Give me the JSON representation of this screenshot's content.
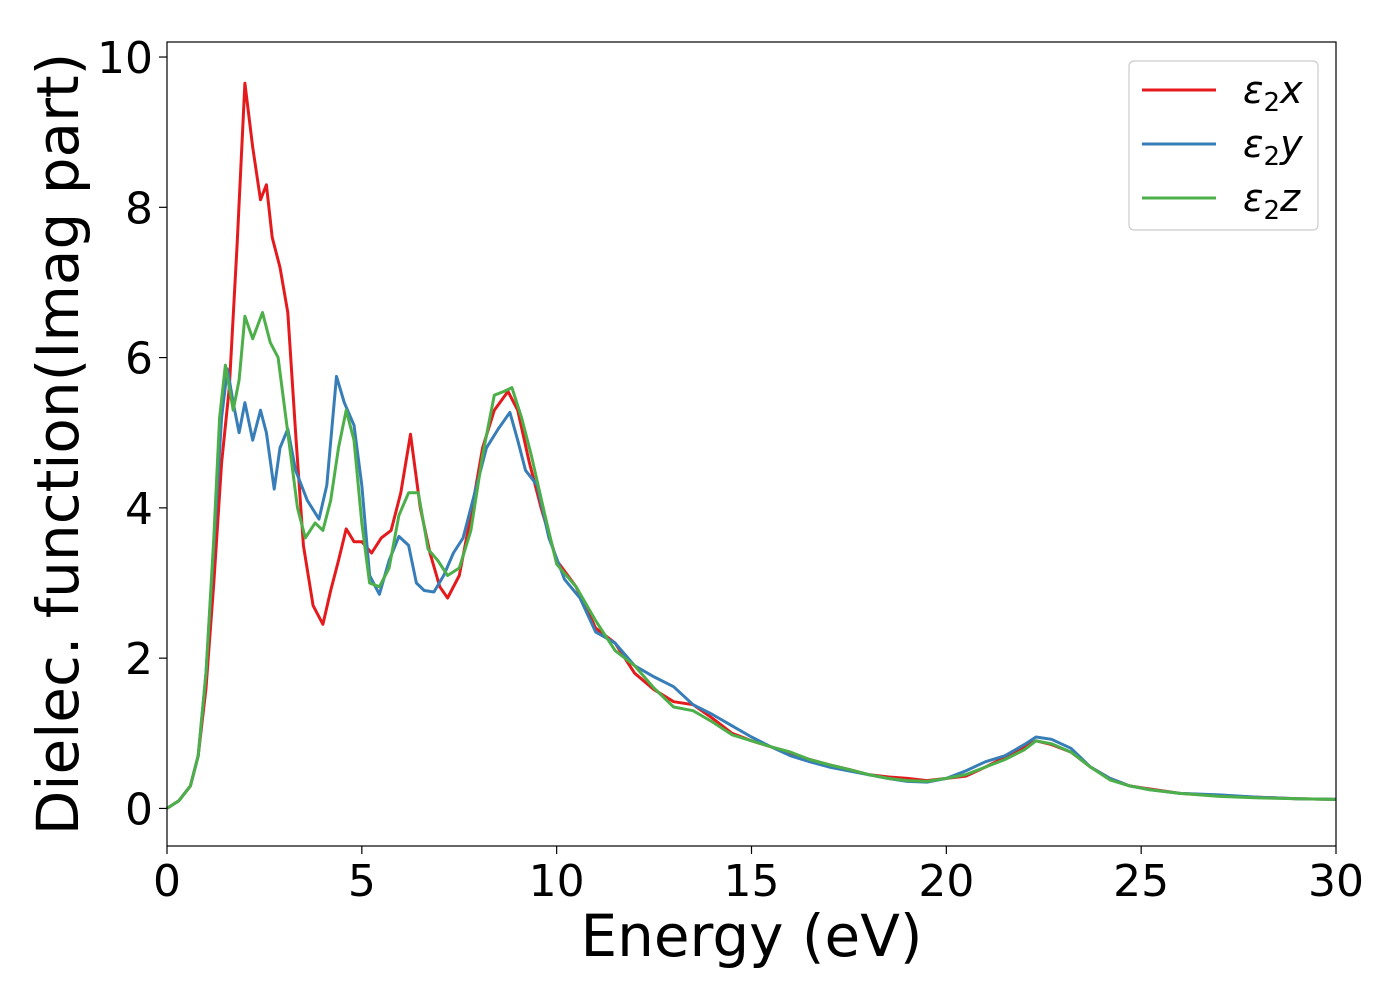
{
  "chart_data": {
    "type": "line",
    "xlabel": "Energy (eV)",
    "ylabel": "Dielec. function(Imag part)",
    "xlim": [
      0,
      30
    ],
    "ylim": [
      -0.5,
      10.2
    ],
    "xticks": [
      0,
      5,
      10,
      15,
      20,
      25,
      30
    ],
    "yticks": [
      0,
      2,
      4,
      6,
      8,
      10
    ],
    "grid": false,
    "legend_position": "top-right",
    "series": [
      {
        "name": "ε2x",
        "legend": {
          "base": "ε",
          "sub": "2",
          "var": "x"
        },
        "color": "#e41a1c",
        "points": [
          [
            0,
            0
          ],
          [
            0.3,
            0.1
          ],
          [
            0.6,
            0.3
          ],
          [
            0.8,
            0.7
          ],
          [
            1.0,
            1.6
          ],
          [
            1.2,
            3.0
          ],
          [
            1.4,
            4.6
          ],
          [
            1.6,
            5.6
          ],
          [
            1.8,
            7.5
          ],
          [
            2.0,
            9.65
          ],
          [
            2.2,
            8.8
          ],
          [
            2.4,
            8.1
          ],
          [
            2.55,
            8.3
          ],
          [
            2.7,
            7.6
          ],
          [
            2.9,
            7.2
          ],
          [
            3.1,
            6.6
          ],
          [
            3.3,
            5.0
          ],
          [
            3.5,
            3.5
          ],
          [
            3.75,
            2.7
          ],
          [
            4.0,
            2.45
          ],
          [
            4.2,
            2.9
          ],
          [
            4.4,
            3.3
          ],
          [
            4.6,
            3.72
          ],
          [
            4.8,
            3.55
          ],
          [
            5.0,
            3.55
          ],
          [
            5.25,
            3.4
          ],
          [
            5.5,
            3.6
          ],
          [
            5.75,
            3.7
          ],
          [
            6.0,
            4.2
          ],
          [
            6.25,
            4.98
          ],
          [
            6.5,
            4.0
          ],
          [
            6.75,
            3.4
          ],
          [
            7.0,
            2.95
          ],
          [
            7.2,
            2.8
          ],
          [
            7.5,
            3.1
          ],
          [
            7.8,
            3.9
          ],
          [
            8.1,
            4.8
          ],
          [
            8.4,
            5.3
          ],
          [
            8.75,
            5.55
          ],
          [
            9.0,
            5.3
          ],
          [
            9.3,
            4.6
          ],
          [
            9.6,
            4.0
          ],
          [
            10.0,
            3.3
          ],
          [
            10.5,
            2.95
          ],
          [
            11.0,
            2.4
          ],
          [
            11.5,
            2.2
          ],
          [
            12.0,
            1.8
          ],
          [
            12.5,
            1.58
          ],
          [
            13.0,
            1.42
          ],
          [
            13.5,
            1.38
          ],
          [
            14.0,
            1.2
          ],
          [
            14.5,
            1.0
          ],
          [
            15.0,
            0.9
          ],
          [
            15.5,
            0.82
          ],
          [
            16.0,
            0.72
          ],
          [
            16.5,
            0.65
          ],
          [
            17.0,
            0.58
          ],
          [
            17.5,
            0.52
          ],
          [
            18.0,
            0.45
          ],
          [
            18.5,
            0.42
          ],
          [
            19.0,
            0.4
          ],
          [
            19.5,
            0.37
          ],
          [
            20.0,
            0.4
          ],
          [
            20.5,
            0.43
          ],
          [
            21.0,
            0.55
          ],
          [
            21.5,
            0.68
          ],
          [
            22.0,
            0.82
          ],
          [
            22.3,
            0.9
          ],
          [
            22.7,
            0.85
          ],
          [
            23.2,
            0.75
          ],
          [
            23.7,
            0.55
          ],
          [
            24.2,
            0.4
          ],
          [
            24.7,
            0.3
          ],
          [
            25.2,
            0.26
          ],
          [
            26.0,
            0.2
          ],
          [
            27.0,
            0.17
          ],
          [
            28.0,
            0.15
          ],
          [
            29.0,
            0.13
          ],
          [
            30.0,
            0.12
          ]
        ]
      },
      {
        "name": "ε2y",
        "legend": {
          "base": "ε",
          "sub": "2",
          "var": "y"
        },
        "color": "#377eb8",
        "points": [
          [
            0,
            0
          ],
          [
            0.3,
            0.1
          ],
          [
            0.6,
            0.3
          ],
          [
            0.8,
            0.7
          ],
          [
            1.0,
            1.8
          ],
          [
            1.2,
            3.5
          ],
          [
            1.4,
            5.2
          ],
          [
            1.55,
            5.85
          ],
          [
            1.7,
            5.4
          ],
          [
            1.85,
            5.0
          ],
          [
            2.0,
            5.4
          ],
          [
            2.2,
            4.9
          ],
          [
            2.4,
            5.3
          ],
          [
            2.55,
            5.0
          ],
          [
            2.75,
            4.25
          ],
          [
            2.9,
            4.8
          ],
          [
            3.1,
            5.05
          ],
          [
            3.3,
            4.5
          ],
          [
            3.6,
            4.1
          ],
          [
            3.9,
            3.85
          ],
          [
            4.1,
            4.3
          ],
          [
            4.35,
            5.75
          ],
          [
            4.55,
            5.4
          ],
          [
            4.8,
            5.1
          ],
          [
            5.0,
            4.3
          ],
          [
            5.2,
            3.1
          ],
          [
            5.45,
            2.85
          ],
          [
            5.7,
            3.3
          ],
          [
            5.95,
            3.62
          ],
          [
            6.2,
            3.5
          ],
          [
            6.4,
            3.0
          ],
          [
            6.6,
            2.9
          ],
          [
            6.85,
            2.88
          ],
          [
            7.1,
            3.1
          ],
          [
            7.35,
            3.4
          ],
          [
            7.6,
            3.6
          ],
          [
            7.9,
            4.2
          ],
          [
            8.2,
            4.8
          ],
          [
            8.5,
            5.05
          ],
          [
            8.8,
            5.27
          ],
          [
            9.0,
            4.9
          ],
          [
            9.2,
            4.5
          ],
          [
            9.5,
            4.3
          ],
          [
            9.8,
            3.6
          ],
          [
            10.2,
            3.05
          ],
          [
            10.6,
            2.8
          ],
          [
            11.0,
            2.35
          ],
          [
            11.5,
            2.2
          ],
          [
            12.0,
            1.9
          ],
          [
            12.5,
            1.75
          ],
          [
            13.0,
            1.62
          ],
          [
            13.5,
            1.38
          ],
          [
            14.0,
            1.25
          ],
          [
            14.5,
            1.1
          ],
          [
            15.0,
            0.95
          ],
          [
            15.5,
            0.82
          ],
          [
            16.0,
            0.7
          ],
          [
            16.5,
            0.62
          ],
          [
            17.0,
            0.55
          ],
          [
            17.5,
            0.5
          ],
          [
            18.0,
            0.45
          ],
          [
            18.5,
            0.4
          ],
          [
            19.0,
            0.36
          ],
          [
            19.5,
            0.35
          ],
          [
            20.0,
            0.4
          ],
          [
            20.5,
            0.5
          ],
          [
            21.0,
            0.62
          ],
          [
            21.5,
            0.7
          ],
          [
            22.0,
            0.85
          ],
          [
            22.3,
            0.95
          ],
          [
            22.7,
            0.92
          ],
          [
            23.2,
            0.8
          ],
          [
            23.7,
            0.55
          ],
          [
            24.2,
            0.4
          ],
          [
            24.7,
            0.3
          ],
          [
            25.2,
            0.25
          ],
          [
            26.0,
            0.2
          ],
          [
            27.0,
            0.18
          ],
          [
            28.0,
            0.15
          ],
          [
            29.0,
            0.13
          ],
          [
            30.0,
            0.12
          ]
        ]
      },
      {
        "name": "ε2z",
        "legend": {
          "base": "ε",
          "sub": "2",
          "var": "z"
        },
        "color": "#4daf4a",
        "points": [
          [
            0,
            0
          ],
          [
            0.3,
            0.1
          ],
          [
            0.6,
            0.3
          ],
          [
            0.8,
            0.7
          ],
          [
            1.0,
            1.8
          ],
          [
            1.2,
            3.6
          ],
          [
            1.35,
            5.2
          ],
          [
            1.5,
            5.9
          ],
          [
            1.7,
            5.3
          ],
          [
            1.85,
            5.7
          ],
          [
            2.0,
            6.55
          ],
          [
            2.2,
            6.25
          ],
          [
            2.45,
            6.6
          ],
          [
            2.65,
            6.2
          ],
          [
            2.85,
            6.0
          ],
          [
            3.1,
            5.0
          ],
          [
            3.35,
            4.0
          ],
          [
            3.55,
            3.6
          ],
          [
            3.8,
            3.8
          ],
          [
            4.0,
            3.7
          ],
          [
            4.2,
            4.1
          ],
          [
            4.4,
            4.8
          ],
          [
            4.6,
            5.3
          ],
          [
            4.8,
            4.9
          ],
          [
            5.0,
            3.8
          ],
          [
            5.2,
            3.0
          ],
          [
            5.45,
            2.95
          ],
          [
            5.7,
            3.2
          ],
          [
            5.95,
            3.9
          ],
          [
            6.2,
            4.2
          ],
          [
            6.45,
            4.2
          ],
          [
            6.7,
            3.45
          ],
          [
            6.95,
            3.3
          ],
          [
            7.2,
            3.1
          ],
          [
            7.5,
            3.2
          ],
          [
            7.8,
            3.7
          ],
          [
            8.1,
            4.7
          ],
          [
            8.4,
            5.5
          ],
          [
            8.65,
            5.55
          ],
          [
            8.85,
            5.6
          ],
          [
            9.1,
            5.2
          ],
          [
            9.35,
            4.7
          ],
          [
            9.7,
            3.9
          ],
          [
            10.0,
            3.25
          ],
          [
            10.5,
            2.95
          ],
          [
            11.0,
            2.5
          ],
          [
            11.5,
            2.1
          ],
          [
            12.0,
            1.9
          ],
          [
            12.5,
            1.6
          ],
          [
            13.0,
            1.35
          ],
          [
            13.5,
            1.3
          ],
          [
            14.0,
            1.15
          ],
          [
            14.5,
            0.98
          ],
          [
            15.0,
            0.9
          ],
          [
            15.5,
            0.82
          ],
          [
            16.0,
            0.75
          ],
          [
            16.5,
            0.65
          ],
          [
            17.0,
            0.58
          ],
          [
            17.5,
            0.52
          ],
          [
            18.0,
            0.45
          ],
          [
            18.5,
            0.4
          ],
          [
            19.0,
            0.37
          ],
          [
            19.5,
            0.36
          ],
          [
            20.0,
            0.4
          ],
          [
            20.5,
            0.45
          ],
          [
            21.0,
            0.55
          ],
          [
            21.5,
            0.65
          ],
          [
            22.0,
            0.78
          ],
          [
            22.3,
            0.9
          ],
          [
            22.7,
            0.86
          ],
          [
            23.2,
            0.75
          ],
          [
            23.7,
            0.55
          ],
          [
            24.2,
            0.38
          ],
          [
            24.7,
            0.3
          ],
          [
            25.2,
            0.25
          ],
          [
            26.0,
            0.2
          ],
          [
            27.0,
            0.16
          ],
          [
            28.0,
            0.14
          ],
          [
            29.0,
            0.13
          ],
          [
            30.0,
            0.12
          ]
        ]
      }
    ]
  }
}
